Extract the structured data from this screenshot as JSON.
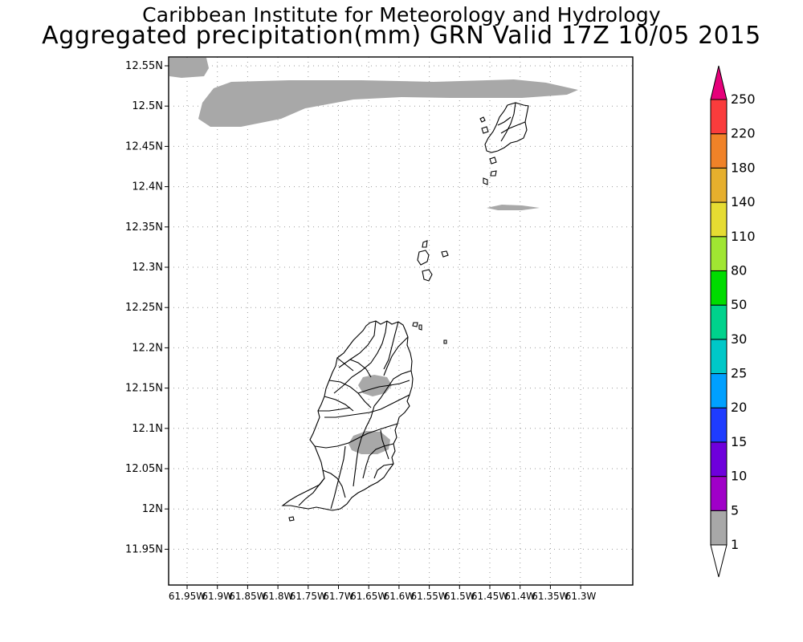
{
  "header": {
    "title_line1": "Caribbean Institute for Meteorology and Hydrology",
    "title_line2": "Aggregated precipitation(mm) GRN Valid 17Z 10/05 2015"
  },
  "map": {
    "lat_labels": [
      "12.55N",
      "12.5N",
      "12.45N",
      "12.4N",
      "12.35N",
      "12.3N",
      "12.25N",
      "12.2N",
      "12.15N",
      "12.1N",
      "12.05N",
      "12N",
      "11.95N"
    ],
    "lon_labels": [
      "61.95W",
      "61.9W",
      "61.85W",
      "61.8W",
      "61.75W",
      "61.7W",
      "61.65W",
      "61.6W",
      "61.55W",
      "61.5W",
      "61.45W",
      "61.4W",
      "61.35W",
      "61.3W"
    ],
    "grid": true,
    "gridline_style": "dotted",
    "precip_fill_color": "#a8a8a8",
    "coastline_color": "#000000"
  },
  "colorbar": {
    "labels": [
      "1",
      "5",
      "10",
      "15",
      "20",
      "25",
      "30",
      "50",
      "80",
      "110",
      "140",
      "180",
      "220",
      "250"
    ],
    "colors": [
      "#a8a8a8",
      "#a000c8",
      "#6e00dc",
      "#1e3cff",
      "#00a0ff",
      "#00c8c8",
      "#00d28c",
      "#00dc00",
      "#a0e632",
      "#e6dc32",
      "#e6af2d",
      "#f08228",
      "#fa3c3c",
      "#f00082"
    ],
    "under_color": "#ffffff",
    "over_color": "#e6007a"
  }
}
